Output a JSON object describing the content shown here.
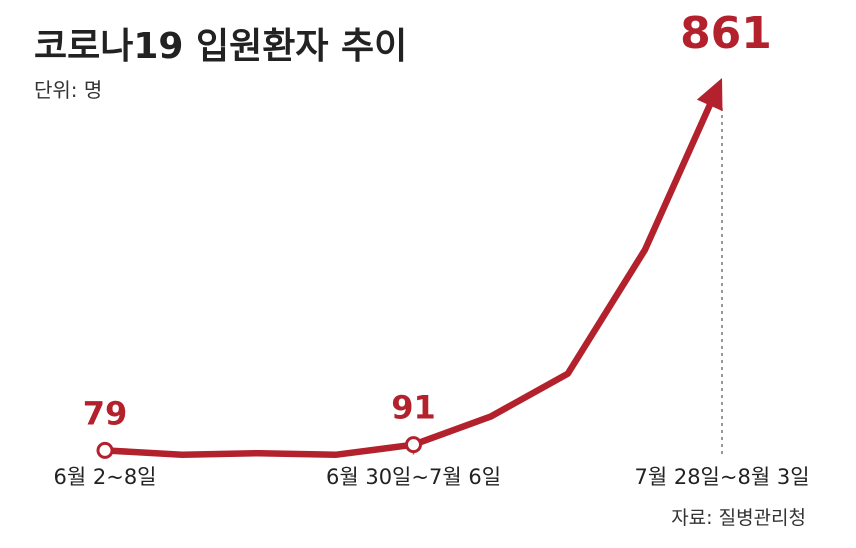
{
  "chart_data": {
    "type": "line",
    "title": "코로나19 입원환자 추이",
    "subtitle": "단위: 명",
    "source": "자료: 질병관리청",
    "x": [
      "6월 2~8일",
      "",
      "",
      "",
      "6월 30일~7월 6일",
      "",
      "",
      "",
      "7월 28일~8월 3일"
    ],
    "tick_labels": [
      "6월 2~8일",
      "6월 30일~7월 6일",
      "7월 28일~8월 3일"
    ],
    "series": [
      {
        "values": [
          79,
          70,
          73,
          70,
          91,
          150,
          240,
          500,
          861
        ]
      }
    ],
    "data_labels": [
      {
        "index": 0,
        "text": "79"
      },
      {
        "index": 4,
        "text": "91"
      },
      {
        "index": 8,
        "text": "861"
      }
    ],
    "ylim": [
      0,
      861
    ],
    "grid": false,
    "line_color": "#b3212d"
  }
}
